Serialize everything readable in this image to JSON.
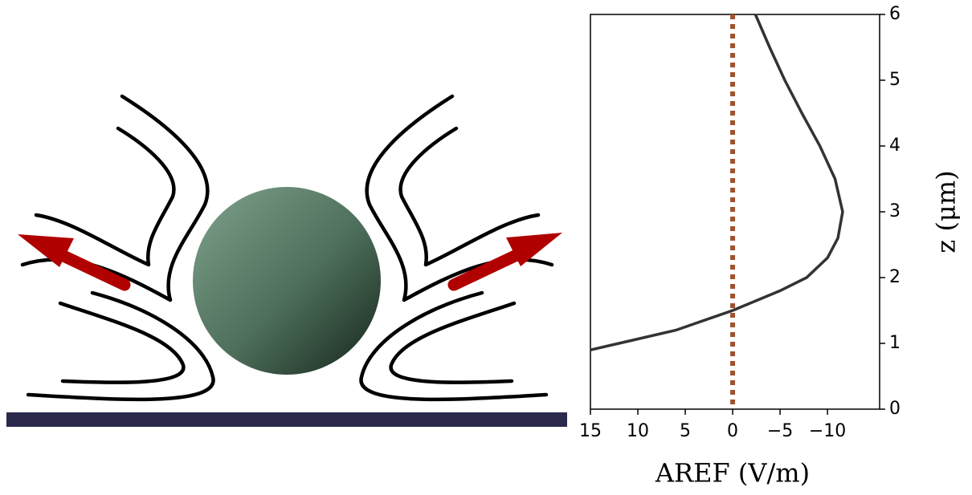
{
  "chart_data": {
    "type": "line",
    "xlabel": "AREF (V/m)",
    "ylabel": "z (μm)",
    "x": [
      15,
      12,
      6,
      0,
      -5,
      -7.8,
      -10,
      -11.1,
      -11.6,
      -10.8,
      -9.2,
      -7.3,
      -5.5,
      -3.9,
      -2.4
    ],
    "series": [
      {
        "color": "#333333",
        "values": [
          0.9,
          1.0,
          1.2,
          1.5,
          1.8,
          2.0,
          2.3,
          2.6,
          3.0,
          3.5,
          4.0,
          4.5,
          5.0,
          5.5,
          6.0
        ]
      }
    ],
    "vline": 0,
    "vline_color": "#a0522d",
    "xlim": [
      15,
      -15.5
    ],
    "ylim": [
      0,
      6
    ],
    "xticks": [
      15,
      10,
      5,
      0,
      {
        "value": -5,
        "label": "−5"
      },
      {
        "value": -10,
        "label": "−10"
      }
    ],
    "yticks": [
      0,
      1,
      2,
      3,
      4,
      5,
      6
    ]
  }
}
